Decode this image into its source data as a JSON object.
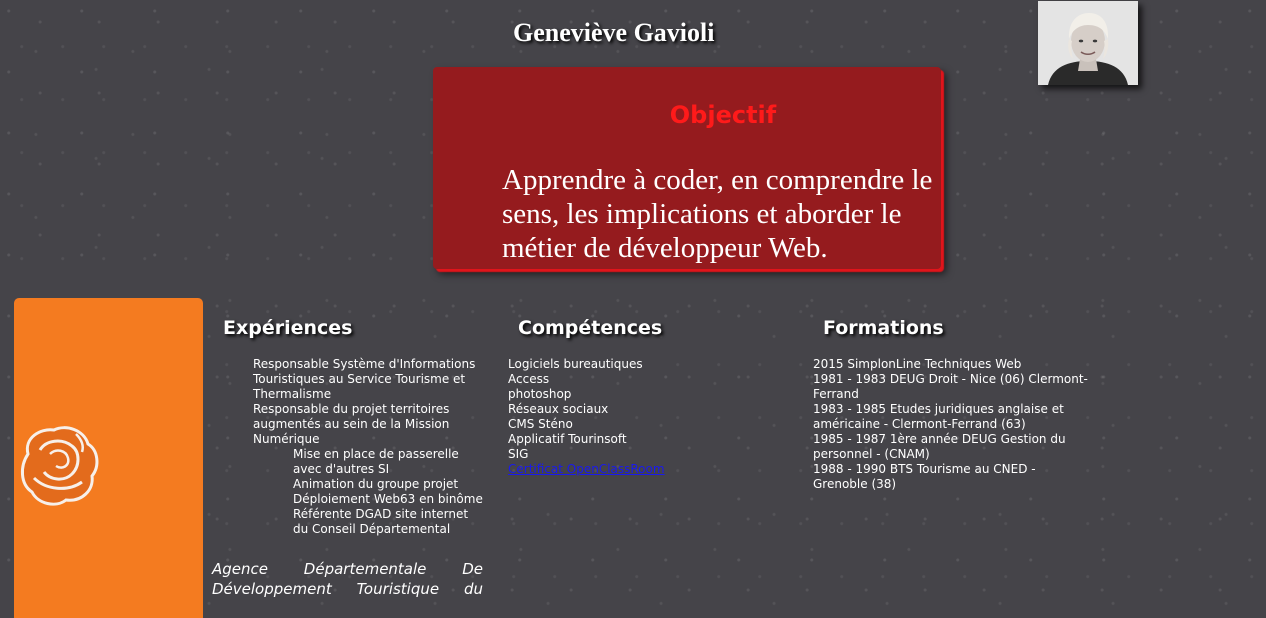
{
  "header": {
    "name": "Geneviève Gavioli"
  },
  "objective": {
    "title": "Objectif",
    "text": "Apprendre à coder, en comprendre le sens, les implications et aborder le métier de développeur Web."
  },
  "colors": {
    "background": "#454449",
    "objective_box": "#951b1e",
    "objective_title": "#ff1a1a",
    "sidebar": "#f47b20",
    "link": "#1a1aee"
  },
  "sidebar": {
    "logo_icon": "rose-logo-icon"
  },
  "experiences": {
    "title": "Expériences",
    "items": [
      "Responsable Système d'Informations Touristiques au Service Tourisme et Thermalisme",
      "Responsable du projet territoires augmentés au sein de la Mission Numérique"
    ],
    "subitems": [
      "Mise en place de passerelle avec d'autres SI",
      "Animation du groupe projet",
      "Déploiement Web63 en binôme",
      "Référente DGAD site internet du Conseil Départemental"
    ],
    "agency": "Agence Départementale De Développement Touristique du"
  },
  "competences": {
    "title": "Compétences",
    "items": [
      "Logiciels bureautiques",
      "Access",
      "photoshop",
      "Réseaux sociaux",
      "CMS Sténo",
      "Applicatif Tourinsoft",
      "SIG"
    ],
    "link_label": "Certificat OpenClassRoom"
  },
  "formations": {
    "title": "Formations",
    "items": [
      "2015 SimplonLine Techniques Web",
      "1981 - 1983 DEUG Droit - Nice (06) Clermont-Ferrand",
      "1983 - 1985 Etudes juridiques anglaise et américaine - Clermont-Ferrand (63)",
      "1985 - 1987 1ère année DEUG Gestion du personnel - (CNAM)",
      "1988 - 1990 BTS Tourisme au CNED - Grenoble (38)"
    ]
  }
}
